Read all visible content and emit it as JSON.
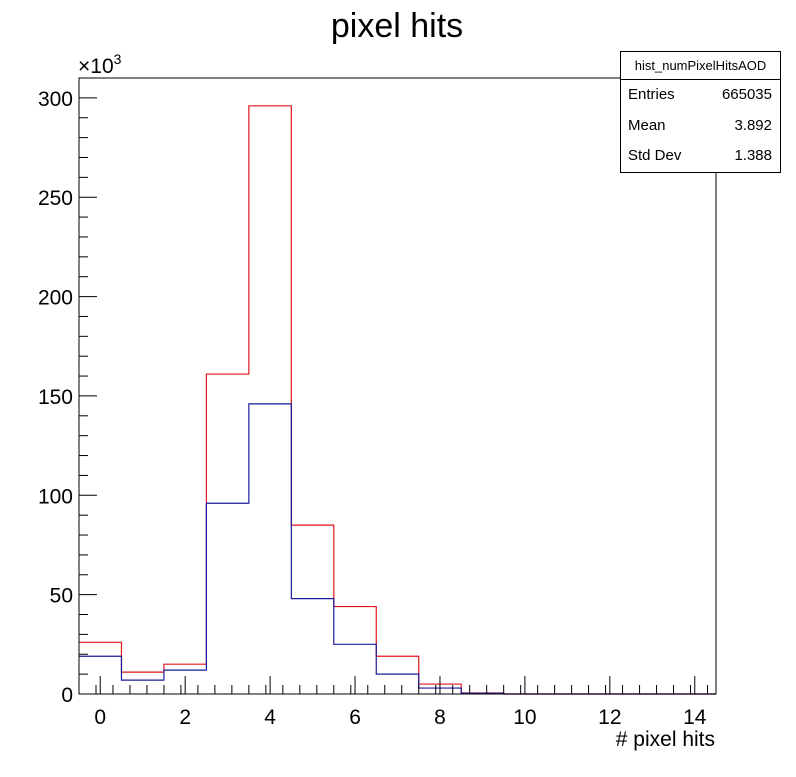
{
  "chart_data": {
    "type": "bar",
    "title": "pixel hits",
    "xlabel": "# pixel hits",
    "ylabel": "",
    "y_multiplier_label": "×10",
    "y_multiplier_exp": "3",
    "xlim": [
      -0.5,
      14.5
    ],
    "ylim": [
      0,
      310
    ],
    "x_ticks": [
      0,
      2,
      4,
      6,
      8,
      10,
      12,
      14
    ],
    "y_ticks": [
      0,
      50,
      100,
      150,
      200,
      250,
      300
    ],
    "bin_edges": [
      -0.5,
      0.5,
      1.5,
      2.5,
      3.5,
      4.5,
      5.5,
      6.5,
      7.5,
      8.5,
      9.5,
      10.5,
      11.5,
      12.5,
      13.5,
      14.5
    ],
    "series": [
      {
        "color": "#e0161c",
        "values": [
          26,
          11,
          15,
          161,
          296,
          85,
          44,
          19,
          5,
          0.5,
          0,
          0,
          0,
          0,
          0
        ]
      },
      {
        "color": "#1b1b9a",
        "values": [
          19,
          7,
          12,
          96,
          146,
          48,
          25,
          10,
          3,
          0.3,
          0,
          0,
          0,
          0,
          0
        ]
      }
    ],
    "stats": {
      "name": "hist_numPixelHitsAOD",
      "rows": [
        {
          "label": "Entries",
          "value": "665035"
        },
        {
          "label": "Mean",
          "value": "3.892"
        },
        {
          "label": "Std Dev",
          "value": "1.388"
        }
      ]
    }
  }
}
